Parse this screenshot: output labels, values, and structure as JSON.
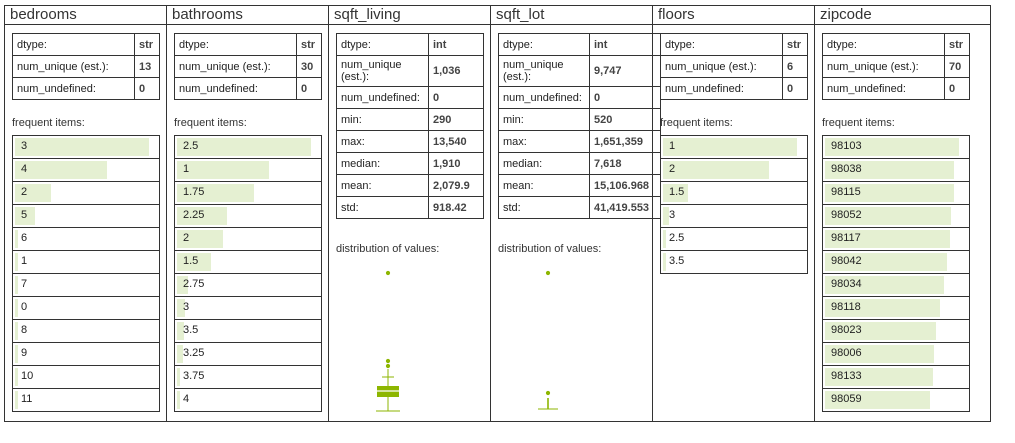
{
  "labels": {
    "dtype": "dtype:",
    "num_unique": "num_unique (est.):",
    "num_unique_short1": "num_unique",
    "num_unique_short2": "(est.):",
    "num_undefined": "num_undefined:",
    "frequent": "frequent items:",
    "distribution": "distribution of values:",
    "min": "min:",
    "max": "max:",
    "median": "median:",
    "mean": "mean:",
    "std": "std:"
  },
  "accent_color": "#8db600",
  "bar_color": "#e5f0d2",
  "columns": [
    {
      "title": "bedrooms",
      "dtype": "str",
      "num_unique": "13",
      "num_undefined": "0",
      "freq": [
        {
          "v": "3",
          "f": 0.96
        },
        {
          "v": "4",
          "f": 0.66
        },
        {
          "v": "2",
          "f": 0.26
        },
        {
          "v": "5",
          "f": 0.14
        },
        {
          "v": "6",
          "f": 0.02
        },
        {
          "v": "1",
          "f": 0.01
        },
        {
          "v": "7",
          "f": 0.005
        },
        {
          "v": "0",
          "f": 0.003
        },
        {
          "v": "8",
          "f": 0.002
        },
        {
          "v": "9",
          "f": 0.001
        },
        {
          "v": "10",
          "f": 0.001
        },
        {
          "v": "11",
          "f": 0.001
        }
      ]
    },
    {
      "title": "bathrooms",
      "dtype": "str",
      "num_unique": "30",
      "num_undefined": "0",
      "freq": [
        {
          "v": "2.5",
          "f": 0.96
        },
        {
          "v": "1",
          "f": 0.66
        },
        {
          "v": "1.75",
          "f": 0.55
        },
        {
          "v": "2.25",
          "f": 0.36
        },
        {
          "v": "2",
          "f": 0.33
        },
        {
          "v": "1.5",
          "f": 0.24
        },
        {
          "v": "2.75",
          "f": 0.08
        },
        {
          "v": "3",
          "f": 0.06
        },
        {
          "v": "3.5",
          "f": 0.05
        },
        {
          "v": "3.25",
          "f": 0.04
        },
        {
          "v": "3.75",
          "f": 0.02
        },
        {
          "v": "4",
          "f": 0.02
        }
      ]
    },
    {
      "title": "sqft_living",
      "dtype": "int",
      "num_unique": "1,036",
      "num_undefined": "0",
      "min": "290",
      "max": "13,540",
      "median": "1,910",
      "mean": "2,079.9",
      "std": "918.42"
    },
    {
      "title": "sqft_lot",
      "dtype": "int",
      "num_unique": "9,747",
      "num_undefined": "0",
      "min": "520",
      "max": "1,651,359",
      "median": "7,618",
      "mean": "15,106.968",
      "std": "41,419.553"
    },
    {
      "title": "floors",
      "dtype": "str",
      "num_unique": "6",
      "num_undefined": "0",
      "freq": [
        {
          "v": "1",
          "f": 0.96
        },
        {
          "v": "2",
          "f": 0.76
        },
        {
          "v": "1.5",
          "f": 0.18
        },
        {
          "v": "3",
          "f": 0.04
        },
        {
          "v": "2.5",
          "f": 0.01
        },
        {
          "v": "3.5",
          "f": 0.005
        }
      ]
    },
    {
      "title": "zipcode",
      "dtype": "str",
      "num_unique": "70",
      "num_undefined": "0",
      "freq": [
        {
          "v": "98103",
          "f": 0.96
        },
        {
          "v": "98038",
          "f": 0.92
        },
        {
          "v": "98115",
          "f": 0.92
        },
        {
          "v": "98052",
          "f": 0.9
        },
        {
          "v": "98117",
          "f": 0.89
        },
        {
          "v": "98042",
          "f": 0.87
        },
        {
          "v": "98034",
          "f": 0.85
        },
        {
          "v": "98118",
          "f": 0.82
        },
        {
          "v": "98023",
          "f": 0.79
        },
        {
          "v": "98006",
          "f": 0.78
        },
        {
          "v": "98133",
          "f": 0.77
        },
        {
          "v": "98059",
          "f": 0.75
        }
      ]
    }
  ]
}
